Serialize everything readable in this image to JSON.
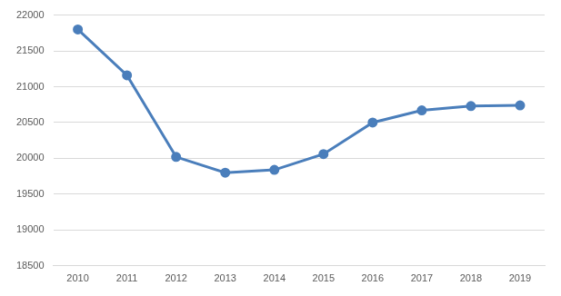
{
  "chart_data": {
    "type": "line",
    "categories": [
      "2010",
      "2011",
      "2012",
      "2013",
      "2014",
      "2015",
      "2016",
      "2017",
      "2018",
      "2019"
    ],
    "values": [
      21800,
      21160,
      20020,
      19800,
      19840,
      20060,
      20500,
      20670,
      20730,
      20740
    ],
    "color": "#4a7ebb",
    "marker": "circle",
    "line_style": "solid",
    "ylim": [
      18500,
      22000
    ],
    "yticks": [
      18500,
      19000,
      19500,
      20000,
      20500,
      21000,
      21500,
      22000
    ],
    "grid": true
  }
}
